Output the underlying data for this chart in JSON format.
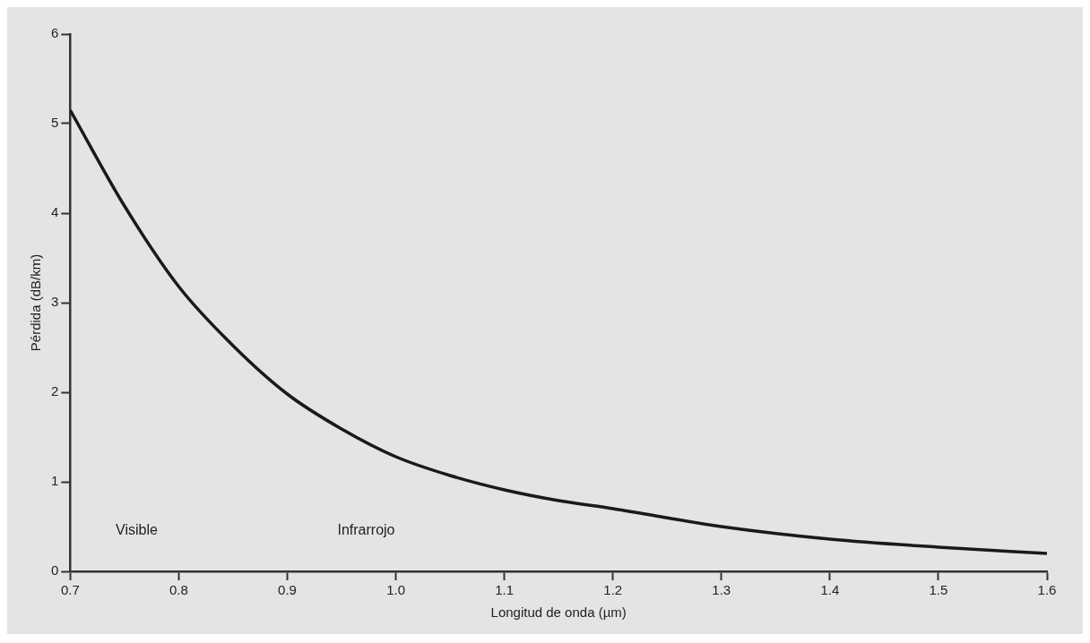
{
  "chart_data": {
    "type": "line",
    "xlabel": "Longitud de onda (µm)",
    "ylabel": "Pérdida (dB/km)",
    "x": [
      0.7,
      0.75,
      0.8,
      0.85,
      0.9,
      0.95,
      1.0,
      1.05,
      1.1,
      1.15,
      1.2,
      1.3,
      1.4,
      1.5,
      1.6
    ],
    "series": [
      {
        "color": "#1a1a1a",
        "values": [
          5.15,
          4.08,
          3.18,
          2.52,
          1.98,
          1.59,
          1.28,
          1.07,
          0.91,
          0.79,
          0.7,
          0.5,
          0.36,
          0.27,
          0.2
        ]
      }
    ],
    "xlim": [
      0.7,
      1.6
    ],
    "xticks": [
      {
        "value": 0.7,
        "label": "0.7"
      },
      {
        "value": 0.8,
        "label": "0.8"
      },
      {
        "value": 0.9,
        "label": "0.9"
      },
      {
        "value": 1.0,
        "label": "1.0"
      },
      {
        "value": 1.1,
        "label": "1.1"
      },
      {
        "value": 1.2,
        "label": "1.2"
      },
      {
        "value": 1.3,
        "label": "1.3"
      },
      {
        "value": 1.4,
        "label": "1.4"
      },
      {
        "value": 1.5,
        "label": "1.5"
      },
      {
        "value": 1.6,
        "label": "1.6"
      }
    ],
    "ylim": [
      0,
      6
    ],
    "yticks": [
      0,
      1,
      2,
      3,
      4,
      5,
      6
    ],
    "annotations": [
      "Visible",
      "Infrarrojo"
    ],
    "grid": false,
    "legend": false,
    "marker": "none",
    "line_style": "solid"
  }
}
